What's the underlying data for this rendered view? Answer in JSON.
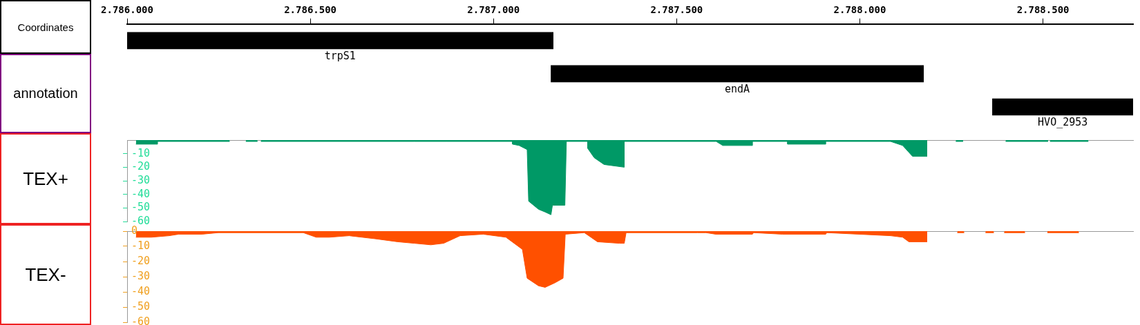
{
  "chart_data": [
    {
      "type": "bar",
      "orientation": "horizontal",
      "xlabel": "Coordinates",
      "ylabel": "annotation",
      "categories": [
        "trpS1",
        "endA",
        "HVO_2953"
      ],
      "base": [
        2786000,
        2787157,
        2788362
      ],
      "values": [
        1163,
        1017,
        384
      ],
      "color": "#000000",
      "xlim": [
        2786000,
        2788746
      ],
      "xticks": [
        {
          "value": 2786000,
          "label": "2.786.000"
        },
        {
          "value": 2786500,
          "label": "2.786.500"
        },
        {
          "value": 2787000,
          "label": "2.787.000"
        },
        {
          "value": 2787500,
          "label": "2.787.500"
        },
        {
          "value": 2788000,
          "label": "2.788.000"
        },
        {
          "value": 2788500,
          "label": "2.788.500"
        }
      ],
      "tick_labels": "x"
    },
    {
      "type": "area",
      "ylabel": "TEX+",
      "xlim": [
        2786000,
        2788746
      ],
      "ylim": [
        -60,
        0
      ],
      "yticks": [
        -10,
        -20,
        -30,
        -40,
        -50,
        -60
      ],
      "tick_labels": "y",
      "series": [
        {
          "color": "#009966",
          "x": [
            2786024,
            2786083,
            2786083,
            2786280,
            2786302,
            2786324,
            2786356,
            2786360,
            2786365,
            2786784,
            2786784,
            2786873,
            2786873,
            2787052,
            2787052,
            2787070,
            2787092,
            2787096,
            2787123,
            2787141,
            2787157,
            2787161,
            2787195,
            2787199,
            2787257,
            2787257,
            2787275,
            2787302,
            2787357,
            2787357,
            2787608,
            2787626,
            2787707,
            2787707,
            2787803,
            2787803,
            2787907,
            2787907,
            2788084,
            2788117,
            2788144,
            2788184,
            2788186,
            2788262,
            2788282,
            2788340,
            2788398,
            2788514,
            2788516,
            2788519,
            2788624
          ],
          "values": [
            -3,
            -3,
            -1,
            -1,
            null,
            -1,
            -1,
            null,
            -1,
            -1,
            -1,
            -1,
            -1,
            -1,
            -3,
            -4,
            -7,
            -45,
            -51,
            -53,
            -55,
            -48,
            -48,
            -1,
            -1,
            -6,
            -13,
            -18,
            -20,
            -1,
            -1,
            -4,
            -4,
            -1,
            -1,
            -3,
            -3,
            -1,
            -1,
            -4,
            -12,
            -12,
            null,
            -1,
            -1,
            null,
            -1,
            -1,
            null,
            -1,
            -1
          ]
        }
      ]
    },
    {
      "type": "area",
      "ylabel": "TEX-",
      "xlim": [
        2786000,
        2788746
      ],
      "ylim": [
        -60,
        0
      ],
      "yticks": [
        0,
        -10,
        -20,
        -30,
        -40,
        -50,
        -60
      ],
      "tick_labels": "y",
      "series": [
        {
          "color": "#ff5000",
          "x": [
            2786024,
            2786066,
            2786115,
            2786141,
            2786204,
            2786249,
            2786481,
            2786516,
            2786552,
            2786606,
            2786641,
            2786677,
            2786739,
            2786784,
            2786829,
            2786864,
            2786909,
            2786972,
            2787034,
            2787079,
            2787092,
            2787123,
            2787141,
            2787168,
            2787190,
            2787196,
            2787248,
            2787266,
            2787284,
            2787344,
            2787357,
            2787362,
            2787557,
            2787580,
            2787607,
            2787707,
            2787710,
            2787789,
            2787907,
            2787910,
            2788084,
            2788117,
            2788134,
            2788184,
            2788220,
            2788266,
            2788285,
            2788310,
            2788343,
            2788366,
            2788380,
            2788394,
            2788451,
            2788480,
            2788512,
            2788598
          ],
          "values": [
            -4,
            -4,
            -3,
            -2,
            -2,
            -1,
            -1,
            -4,
            -4,
            -3,
            -4,
            -5,
            -7,
            -8,
            -9,
            -8,
            -3,
            -2,
            -4,
            -12,
            -31,
            -36,
            -37,
            -34,
            -31,
            -2,
            -1,
            -4,
            -7,
            -8,
            -8,
            -1,
            -1,
            -1,
            -2,
            -2,
            -1,
            -2,
            -2,
            -1,
            -3,
            -4,
            -7,
            -7,
            null,
            -1,
            -1,
            null,
            -1,
            -1,
            null,
            -1,
            -1,
            null,
            -1,
            -1
          ]
        }
      ]
    }
  ]
}
